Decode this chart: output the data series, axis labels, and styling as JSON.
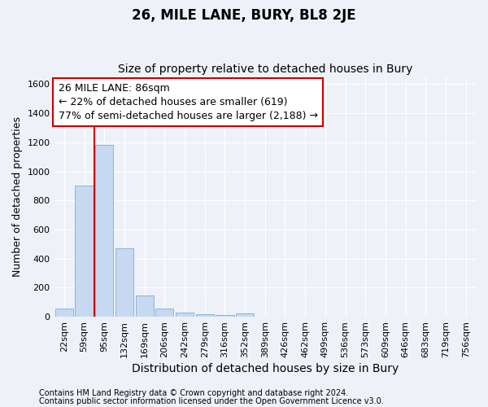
{
  "title": "26, MILE LANE, BURY, BL8 2JE",
  "subtitle": "Size of property relative to detached houses in Bury",
  "xlabel": "Distribution of detached houses by size in Bury",
  "ylabel": "Number of detached properties",
  "footnote1": "Contains HM Land Registry data © Crown copyright and database right 2024.",
  "footnote2": "Contains public sector information licensed under the Open Government Licence v3.0.",
  "bar_color": "#c6d9f0",
  "bar_edge_color": "#7bafd4",
  "categories": [
    "22sqm",
    "59sqm",
    "95sqm",
    "132sqm",
    "169sqm",
    "206sqm",
    "242sqm",
    "279sqm",
    "316sqm",
    "352sqm",
    "389sqm",
    "426sqm",
    "462sqm",
    "499sqm",
    "536sqm",
    "573sqm",
    "609sqm",
    "646sqm",
    "683sqm",
    "719sqm",
    "756sqm"
  ],
  "values": [
    55,
    900,
    1185,
    470,
    148,
    58,
    30,
    18,
    10,
    25,
    0,
    0,
    0,
    0,
    0,
    0,
    0,
    0,
    0,
    0,
    0
  ],
  "ylim": [
    0,
    1650
  ],
  "yticks": [
    0,
    200,
    400,
    600,
    800,
    1000,
    1200,
    1400,
    1600
  ],
  "red_line_x": 2,
  "annotation_line1": "26 MILE LANE: 86sqm",
  "annotation_line2": "← 22% of detached houses are smaller (619)",
  "annotation_line3": "77% of semi-detached houses are larger (2,188) →",
  "red_line_color": "#cc0000",
  "annotation_box_facecolor": "#ffffff",
  "annotation_box_edgecolor": "#cc0000",
  "background_color": "#eef2f8",
  "plot_background": "#eef2f8",
  "grid_color": "#ffffff",
  "title_fontsize": 12,
  "subtitle_fontsize": 10,
  "xlabel_fontsize": 10,
  "ylabel_fontsize": 9,
  "tick_fontsize": 8,
  "annotation_fontsize": 9,
  "footnote_fontsize": 7
}
